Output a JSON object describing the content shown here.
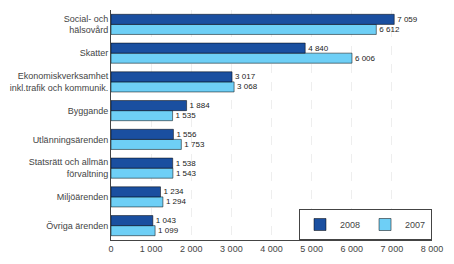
{
  "chart_data": {
    "type": "bar",
    "orientation": "horizontal",
    "categories": [
      "Övriga ärenden",
      "Miljöärenden",
      "Statsrätt och allmän\nförvaltning",
      "Utlänningsärenden",
      "Byggande",
      "Ekonomiskverksamhet\ninkl.trafik och kommunik.",
      "Skatter",
      "Social- och\nhälsovård"
    ],
    "series": [
      {
        "name": "2008",
        "color": "#1a4fa0",
        "values": [
          1043,
          1234,
          1538,
          1556,
          1884,
          3017,
          4840,
          7059
        ],
        "value_labels": [
          "1 043",
          "1 234",
          "1 538",
          "1 556",
          "1 884",
          "3 017",
          "4 840",
          "7 059"
        ]
      },
      {
        "name": "2007",
        "color": "#6ecff6",
        "values": [
          1099,
          1294,
          1543,
          1753,
          1535,
          3068,
          6006,
          6612
        ],
        "value_labels": [
          "1 099",
          "1 294",
          "1 543",
          "1 753",
          "1 535",
          "3 068",
          "6 006",
          "6 612"
        ]
      }
    ],
    "xlim": [
      0,
      8000
    ],
    "xticks": [
      0,
      {
        "value": 1000,
        "label": "1 000"
      },
      {
        "value": 2000,
        "label": "2 000"
      },
      {
        "value": 3000,
        "label": "3 000"
      },
      {
        "value": 4000,
        "label": "4 000"
      },
      {
        "value": 5000,
        "label": "5 000"
      },
      {
        "value": 6000,
        "label": "6 000"
      },
      {
        "value": 7000,
        "label": "7 000"
      },
      {
        "value": 8000,
        "label": "8 000"
      }
    ],
    "grid": true,
    "legend": "lower right",
    "data_labels": true
  }
}
